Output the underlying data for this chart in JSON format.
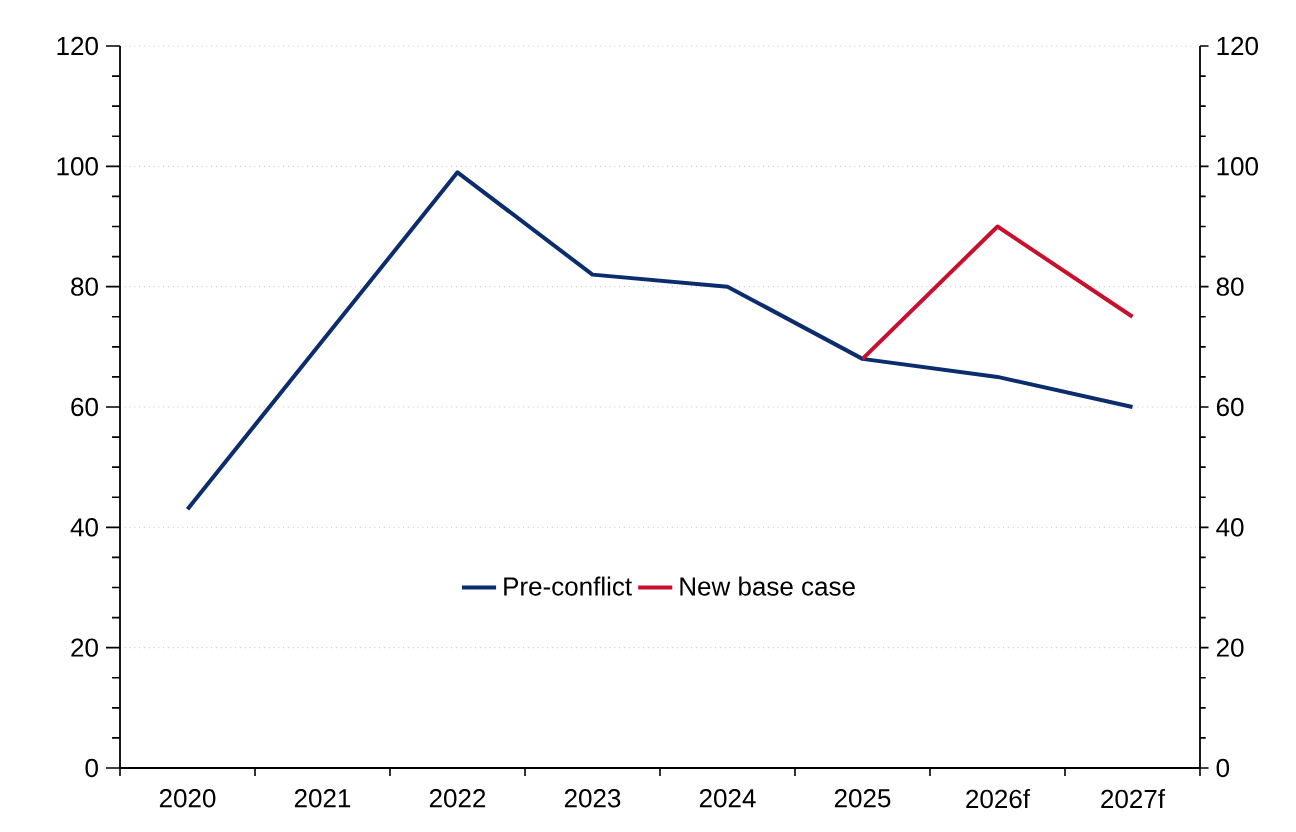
{
  "chart_data": {
    "type": "line",
    "categories": [
      "2020",
      "2021",
      "2022",
      "2023",
      "2024",
      "2025",
      "2026f",
      "2027f"
    ],
    "series": [
      {
        "name": "Pre-conflict",
        "color": "#0b2d6e",
        "values": [
          43,
          71,
          99,
          82,
          80,
          68,
          65,
          60
        ]
      },
      {
        "name": "New base case",
        "color": "#c8102e",
        "values": [
          null,
          null,
          null,
          null,
          null,
          68,
          90,
          75
        ]
      }
    ],
    "ylim": [
      0,
      120
    ],
    "yticks": [
      0,
      20,
      40,
      60,
      80,
      100,
      120
    ],
    "y2lim": [
      0,
      120
    ],
    "y2ticks": [
      0,
      20,
      40,
      60,
      80,
      100,
      120
    ],
    "grid": "y",
    "legend": "bottom",
    "marker": "none",
    "line_style": "solid"
  }
}
